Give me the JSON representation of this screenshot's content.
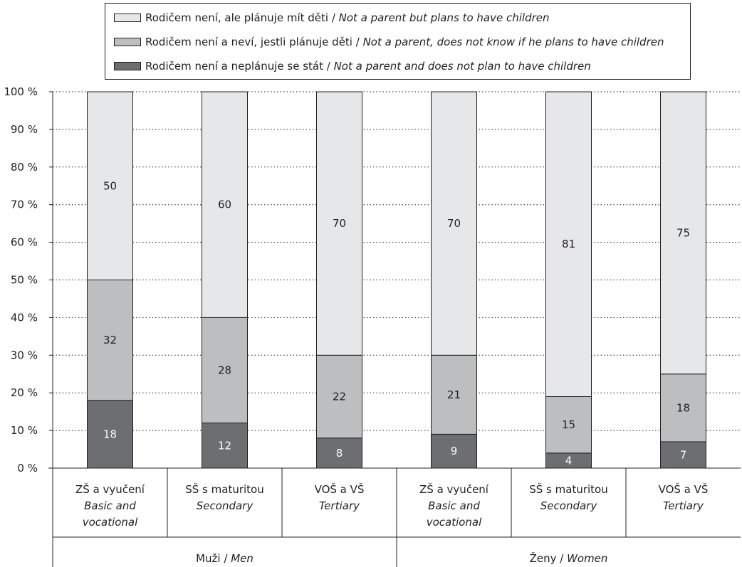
{
  "chart_data": {
    "type": "bar",
    "stacked": true,
    "percent_stacked": true,
    "ylim": [
      0,
      100
    ],
    "yticks": [
      "0 %",
      "10 %",
      "20 %",
      "30 %",
      "40 %",
      "50 %",
      "60 %",
      "70 %",
      "80 %",
      "90 %",
      "100 %"
    ],
    "grid": "dotted horizontal",
    "legend_placement": "top",
    "categories": [
      {
        "cz": "ZŠ a vyučení",
        "en": [
          "Basic and",
          "vocational"
        ]
      },
      {
        "cz": "SŠ s maturitou",
        "en": [
          "Secondary"
        ]
      },
      {
        "cz": "VOŠ a VŠ",
        "en": [
          "Tertiary"
        ]
      },
      {
        "cz": "ZŠ a vyučení",
        "en": [
          "Basic and",
          "vocational"
        ]
      },
      {
        "cz": "SŠ s maturitou",
        "en": [
          "Secondary"
        ]
      },
      {
        "cz": "VOŠ a VŠ",
        "en": [
          "Tertiary"
        ]
      }
    ],
    "groups": [
      {
        "cz": "Muži",
        "en": "Men",
        "span": [
          0,
          2
        ]
      },
      {
        "cz": "Ženy",
        "en": "Women",
        "span": [
          3,
          5
        ]
      }
    ],
    "series": [
      {
        "cz": "Rodičem není a neplánuje se stát",
        "en": "Not a parent and does not plan to have children",
        "color": "#6d6e71",
        "label_color": "#ffffff",
        "values": [
          18,
          12,
          8,
          9,
          4,
          7
        ]
      },
      {
        "cz": "Rodičem není a neví, jestli plánuje děti",
        "en": "Not a parent, does not know if he plans to have children",
        "color": "#bcbec0",
        "label_color": "#231f20",
        "values": [
          32,
          28,
          22,
          21,
          15,
          18
        ]
      },
      {
        "cz": "Rodičem není, ale plánuje mít děti",
        "en": "Not a parent but plans to have children",
        "color": "#e6e7e8",
        "label_color": "#231f20",
        "values": [
          50,
          60,
          70,
          70,
          81,
          75
        ]
      }
    ]
  }
}
